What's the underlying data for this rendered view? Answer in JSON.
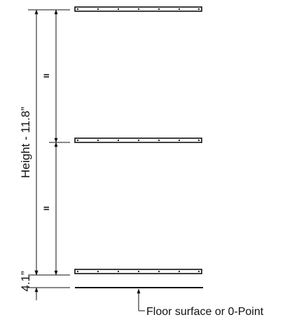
{
  "diagram": {
    "height_label": "Height - 11.8”",
    "gap_label": "4.1”",
    "equal_mark_upper": "II",
    "equal_mark_lower": "II",
    "floor_label": "Floor surface or 0-Point"
  },
  "colors": {
    "line": "#111111",
    "background": "#ffffff"
  }
}
